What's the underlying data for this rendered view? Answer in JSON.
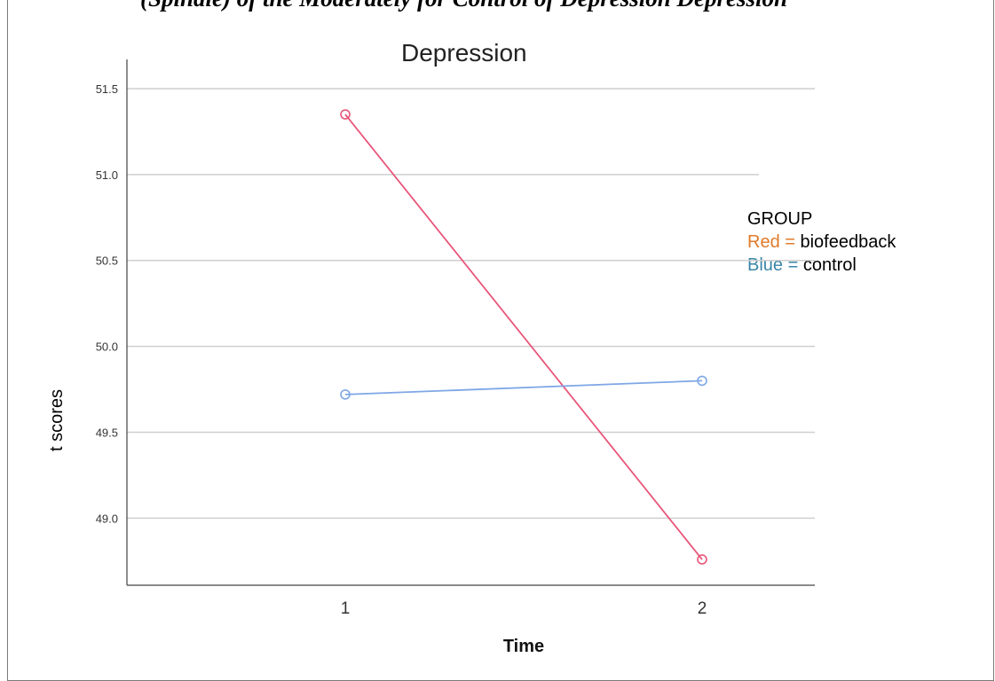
{
  "header_text": "(Spindle) of the Moderately for Control of Depression Depression",
  "chart_data": {
    "type": "line",
    "title": "Depression",
    "xlabel": "Time",
    "ylabel": "t scores",
    "categories": [
      "1",
      "2"
    ],
    "ylim": [
      48.61,
      51.67
    ],
    "yticks": [
      "49.0",
      "49.5",
      "50.0",
      "50.5",
      "51.0",
      "51.5"
    ],
    "grid": true,
    "legend_placement": "right",
    "series": [
      {
        "name": "biofeedback",
        "color": "#e8567a",
        "values": [
          51.35,
          48.76
        ]
      },
      {
        "name": "control",
        "color": "#7ea7e6",
        "values": [
          49.72,
          49.8
        ]
      }
    ],
    "legend": {
      "title": "GROUP",
      "entries": [
        {
          "prefix": "Red = ",
          "label": "biofeedback"
        },
        {
          "prefix": "Blue = ",
          "label": "control"
        }
      ]
    }
  }
}
